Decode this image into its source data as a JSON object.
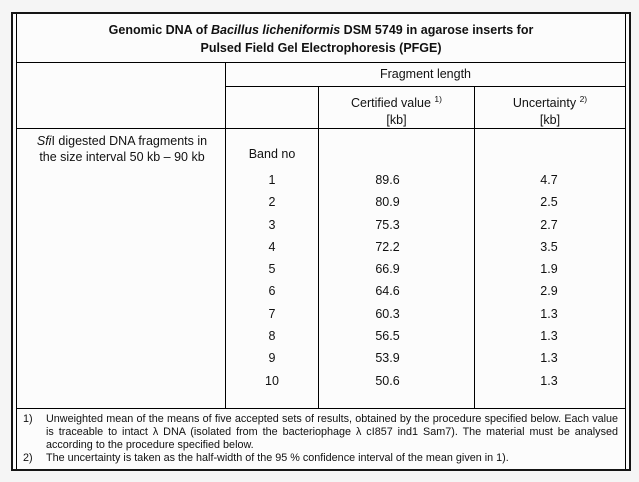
{
  "title": {
    "line1_prefix": "Genomic DNA of ",
    "line1_italic": "Bacillus licheniformis",
    "line1_suffix": " DSM 5749 in agarose inserts for",
    "line2": "Pulsed Field Gel Electrophoresis (PFGE)"
  },
  "header": {
    "fragment_length": "Fragment length",
    "certified_value_label": "Certified value",
    "certified_value_sup": "1)",
    "uncertainty_label": "Uncertainty",
    "uncertainty_sup": "2)",
    "unit": "[kb]"
  },
  "body": {
    "description_italic": "Sfi",
    "description_line1_rest": "I digested DNA fragments in",
    "description_line2": "the size interval 50 kb – 90 kb",
    "band_no_label": "Band no"
  },
  "rows": [
    {
      "band": "1",
      "certified": "89.6",
      "uncertainty": "4.7"
    },
    {
      "band": "2",
      "certified": "80.9",
      "uncertainty": "2.5"
    },
    {
      "band": "3",
      "certified": "75.3",
      "uncertainty": "2.7"
    },
    {
      "band": "4",
      "certified": "72.2",
      "uncertainty": "3.5"
    },
    {
      "band": "5",
      "certified": "66.9",
      "uncertainty": "1.9"
    },
    {
      "band": "6",
      "certified": "64.6",
      "uncertainty": "2.9"
    },
    {
      "band": "7",
      "certified": "60.3",
      "uncertainty": "1.3"
    },
    {
      "band": "8",
      "certified": "56.5",
      "uncertainty": "1.3"
    },
    {
      "band": "9",
      "certified": "53.9",
      "uncertainty": "1.3"
    },
    {
      "band": "10",
      "certified": "50.6",
      "uncertainty": "1.3"
    }
  ],
  "footnotes": [
    {
      "marker": "1)",
      "text": "Unweighted mean of the means of five accepted sets of results, obtained by the procedure specified below. Each value is traceable to intact λ DNA (isolated from the bacteriophage λ cI857 ind1 Sam7). The material must be analysed according to the procedure specified below."
    },
    {
      "marker": "2)",
      "text": "The uncertainty is taken as the half-width of the 95 % confidence interval of the mean given in 1)."
    }
  ],
  "colors": {
    "border": "#000000",
    "frame_border": "#151515",
    "background": "#fcfcfc",
    "page_background": "#f5f5f5",
    "text": "#111111"
  }
}
